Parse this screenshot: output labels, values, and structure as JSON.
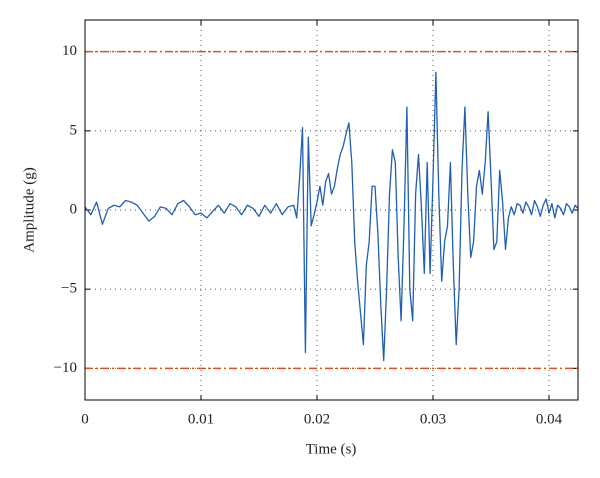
{
  "chart_data": {
    "type": "line",
    "xlabel": "Time (s)",
    "ylabel": "Amplitude (g)",
    "x": [
      0,
      0.0005,
      0.001,
      0.0015,
      0.002,
      0.0025,
      0.003,
      0.0035,
      0.004,
      0.0045,
      0.005,
      0.0055,
      0.006,
      0.0065,
      0.007,
      0.0075,
      0.008,
      0.0085,
      0.009,
      0.0095,
      0.01,
      0.0105,
      0.011,
      0.0115,
      0.012,
      0.0125,
      0.013,
      0.0135,
      0.014,
      0.0145,
      0.015,
      0.0155,
      0.016,
      0.0165,
      0.017,
      0.0175,
      0.018,
      0.01825,
      0.0185,
      0.01875,
      0.019,
      0.01925,
      0.0195,
      0.01975,
      0.02,
      0.02025,
      0.0205,
      0.02075,
      0.021,
      0.02125,
      0.0215,
      0.02175,
      0.022,
      0.02225,
      0.0225,
      0.02275,
      0.023,
      0.02325,
      0.0235,
      0.02375,
      0.024,
      0.02425,
      0.0245,
      0.02475,
      0.025,
      0.02525,
      0.0255,
      0.02575,
      0.026,
      0.02625,
      0.0265,
      0.02675,
      0.027,
      0.02725,
      0.0275,
      0.02775,
      0.028,
      0.02825,
      0.0285,
      0.02875,
      0.029,
      0.02925,
      0.0295,
      0.02975,
      0.03,
      0.03025,
      0.0305,
      0.03075,
      0.031,
      0.03125,
      0.0315,
      0.03175,
      0.032,
      0.03225,
      0.0325,
      0.03275,
      0.033,
      0.03325,
      0.0335,
      0.03375,
      0.034,
      0.03425,
      0.0345,
      0.03475,
      0.035,
      0.03525,
      0.0355,
      0.03575,
      0.036,
      0.03625,
      0.0365,
      0.03675,
      0.037,
      0.03725,
      0.0375,
      0.03775,
      0.038,
      0.03825,
      0.0385,
      0.03875,
      0.039,
      0.03925,
      0.0395,
      0.03975,
      0.04,
      0.04025,
      0.0405,
      0.04075,
      0.041,
      0.04125,
      0.0415,
      0.04175,
      0.042,
      0.04225,
      0.0425
    ],
    "values": [
      0.2,
      -0.3,
      0.5,
      -0.9,
      0.1,
      0.3,
      0.2,
      0.6,
      0.5,
      0.3,
      -0.2,
      -0.7,
      -0.4,
      0.2,
      0.1,
      -0.3,
      0.4,
      0.6,
      0.2,
      -0.3,
      -0.2,
      -0.5,
      -0.1,
      0.3,
      -0.2,
      0.4,
      0.2,
      -0.3,
      0.3,
      0.1,
      -0.4,
      0.3,
      -0.2,
      0.4,
      -0.3,
      0.2,
      0.3,
      -0.5,
      2.0,
      5.2,
      -9.0,
      4.6,
      -1.0,
      -0.3,
      0.5,
      1.5,
      0.3,
      1.8,
      2.3,
      1.0,
      1.5,
      2.6,
      3.5,
      4.0,
      4.8,
      5.5,
      3.0,
      -2.0,
      -4.5,
      -6.5,
      -8.5,
      -3.5,
      -2.0,
      1.5,
      1.5,
      -1.5,
      -6.0,
      -9.5,
      -5.0,
      1.0,
      3.8,
      3.0,
      -3.0,
      -7.0,
      -1.0,
      6.5,
      -5.0,
      -7.0,
      1.0,
      3.5,
      0.2,
      -4.0,
      3.0,
      -4.0,
      2.0,
      8.7,
      1.0,
      -4.5,
      -2.0,
      -1.0,
      3.0,
      -3.5,
      -8.5,
      -5.0,
      2.5,
      6.5,
      1.0,
      -3.0,
      -2.0,
      1.5,
      2.5,
      1.0,
      3.0,
      6.2,
      2.0,
      -2.5,
      -2.0,
      2.5,
      0.5,
      -2.5,
      -0.5,
      0.2,
      -0.3,
      0.4,
      0.3,
      -0.2,
      0.5,
      0.2,
      -0.3,
      0.6,
      0.2,
      -0.4,
      0.3,
      0.7,
      -0.2,
      0.4,
      -0.5,
      0.3,
      0.1,
      -0.3,
      0.4,
      0.2,
      -0.2,
      0.3,
      0.1
    ],
    "color": "#1f5fb4",
    "hlines": {
      "values": [
        10,
        -10
      ],
      "color": "#d9541e"
    },
    "xlim": [
      0,
      0.0425
    ],
    "xticks": [
      0,
      0.01,
      0.02,
      0.03,
      0.04
    ],
    "ylim": [
      -12,
      12
    ],
    "yticks": [
      {
        "value": -10,
        "label": "−10"
      },
      {
        "value": -5,
        "label": "−5"
      },
      0,
      5,
      10
    ],
    "grid": true
  }
}
